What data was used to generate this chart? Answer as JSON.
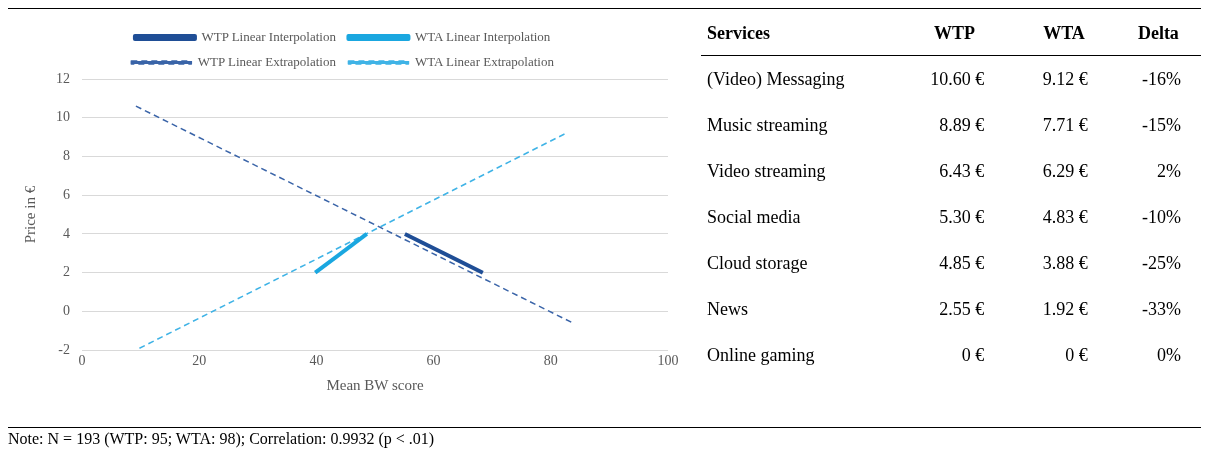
{
  "chart_data": [
    {
      "type": "line",
      "xlabel": "Mean BW score",
      "ylabel": "Price in €",
      "xlim": [
        0,
        100
      ],
      "xticks": [
        0,
        20,
        40,
        60,
        80,
        100
      ],
      "ylim": [
        -2,
        12
      ],
      "yticks": [
        -2,
        0,
        2,
        4,
        6,
        8,
        10,
        12
      ],
      "grid": "y",
      "legend": "top",
      "marker": "none",
      "series": [
        {
          "name": "WTP Linear Interpolation",
          "color": "#1f4e96",
          "line_style": "solid",
          "x": [
            55.1,
            68.4
          ],
          "values": [
            4,
            2
          ]
        },
        {
          "name": "WTA Linear Interpolation",
          "color": "#1aa7e0",
          "line_style": "solid",
          "x": [
            39.8,
            48.6
          ],
          "values": [
            2,
            4
          ]
        },
        {
          "name": "WTP Linear Extrapolation",
          "color": "#3a64a8",
          "line_style": "dashed",
          "x": [
            9.2,
            83.8
          ],
          "values": [
            10.6,
            -0.6
          ]
        },
        {
          "name": "WTA Linear Extrapolation",
          "color": "#3fb3e6",
          "line_style": "dashed",
          "x": [
            9.8,
            82.6
          ],
          "values": [
            -1.9,
            9.2
          ]
        }
      ],
      "annotations": [
        "Note: N = 193 (WTP: 95; WTA: 98); Correlation: 0.9932 (p < .01)"
      ]
    },
    {
      "type": "other",
      "xlabel": "Services",
      "categories": [
        "(Video) Messaging",
        "Music streaming",
        "Video streaming",
        "Social media",
        "Cloud storage",
        "News",
        "Online gaming"
      ],
      "series": [
        {
          "name": "WTP",
          "values": [
            10.6,
            8.89,
            6.43,
            5.3,
            4.85,
            2.55,
            0
          ],
          "value_labels": [
            "10.60 €",
            "8.89 €",
            "6.43 €",
            "5.30 €",
            "4.85 €",
            "2.55 €",
            "0 €"
          ]
        },
        {
          "name": "WTA",
          "values": [
            9.12,
            7.71,
            6.29,
            4.83,
            3.88,
            1.92,
            0
          ],
          "value_labels": [
            "9.12 €",
            "7.71 €",
            "6.29 €",
            "4.83 €",
            "3.88 €",
            "1.92 €",
            "0 €"
          ]
        },
        {
          "name": "Delta",
          "values": [
            -16,
            -15,
            2,
            -10,
            -25,
            -33,
            0
          ],
          "value_labels": [
            "-16%",
            "-15%",
            "2%",
            "-10%",
            "-25%",
            "-33%",
            "0%"
          ]
        }
      ]
    }
  ]
}
